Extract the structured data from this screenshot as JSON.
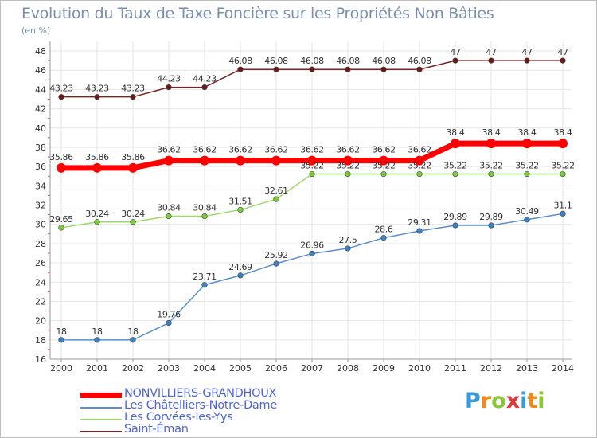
{
  "title": "Evolution du Taux de Taxe Foncière sur les Propriétés Non Bâties",
  "unit_label": "(en %)",
  "brand": {
    "text": "Proxiti",
    "letters": [
      {
        "ch": "P",
        "color": "#3a9ad9"
      },
      {
        "ch": "r",
        "color": "#f08a1c"
      },
      {
        "ch": "o",
        "color": "#8cc63f"
      },
      {
        "ch": "x",
        "color": "#e23a3a"
      },
      {
        "ch": "i",
        "color": "#3a9ad9"
      },
      {
        "ch": "t",
        "color": "#f08a1c"
      },
      {
        "ch": "i",
        "color": "#8cc63f"
      }
    ]
  },
  "chart_data": {
    "type": "line",
    "title": "Evolution du Taux de Taxe Foncière sur les Propriétés Non Bâties",
    "ylabel": "(en %)",
    "xlabel": "",
    "ylim": [
      16,
      48
    ],
    "yticks": [
      16,
      18,
      20,
      22,
      24,
      26,
      28,
      30,
      32,
      34,
      36,
      38,
      40,
      42,
      44,
      46,
      48
    ],
    "x": [
      "2000",
      "2001",
      "2002",
      "2003",
      "2004",
      "2005",
      "2006",
      "2007",
      "2008",
      "2009",
      "2010",
      "2011",
      "2012",
      "2013",
      "2014"
    ],
    "grid": true,
    "legend_position": "bottom-left",
    "series": [
      {
        "name": "NONVILLIERS-GRANDHOUX",
        "color": "#ff0000",
        "marker": "#ff0000",
        "width": 7,
        "labels": [
          "35.86",
          "35.86",
          "35.86",
          "36.62",
          "36.62",
          "36.62",
          "36.62",
          "36.62",
          "36.62",
          "36.62",
          "36.62",
          "38.4",
          "38.4",
          "38.4",
          "38.4"
        ],
        "values": [
          35.86,
          35.86,
          35.86,
          36.62,
          36.62,
          36.62,
          36.62,
          36.62,
          36.62,
          36.62,
          36.62,
          38.4,
          38.4,
          38.4,
          38.4
        ]
      },
      {
        "name": "Les Châtelliers-Notre-Dame",
        "color": "#5a8fcf",
        "marker": "#3b82c4",
        "width": 1.5,
        "labels": [
          "18",
          "18",
          "18",
          "19.76",
          "23.71",
          "24.69",
          "25.92",
          "26.96",
          "27.5",
          "28.6",
          "29.31",
          "29.89",
          "29.89",
          "30.49",
          "31.1"
        ],
        "values": [
          18,
          18,
          18,
          19.76,
          23.71,
          24.69,
          25.92,
          26.96,
          27.5,
          28.6,
          29.31,
          29.89,
          29.89,
          30.49,
          31.1
        ]
      },
      {
        "name": "Les Corvées-les-Yys",
        "color": "#99dd66",
        "marker": "#7ccd3a",
        "width": 1.5,
        "labels": [
          "29.65",
          "30.24",
          "30.24",
          "30.84",
          "30.84",
          "31.51",
          "32.61",
          "35.22",
          "35.22",
          "35.22",
          "35.22",
          "35.22",
          "35.22",
          "35.22",
          "35.22"
        ],
        "values": [
          29.65,
          30.24,
          30.24,
          30.84,
          30.84,
          31.51,
          32.61,
          35.22,
          35.22,
          35.22,
          35.22,
          35.22,
          35.22,
          35.22,
          35.22
        ]
      },
      {
        "name": "Saint-Éman",
        "color": "#7b2424",
        "marker": "#6b1a1a",
        "width": 1.5,
        "labels": [
          "43.23",
          "43.23",
          "43.23",
          "44.23",
          "44.23",
          "46.08",
          "46.08",
          "46.08",
          "46.08",
          "46.08",
          "46.08",
          "47",
          "47",
          "47",
          "47"
        ],
        "values": [
          43.23,
          43.23,
          43.23,
          44.23,
          44.23,
          46.08,
          46.08,
          46.08,
          46.08,
          46.08,
          46.08,
          47,
          47,
          47,
          47
        ]
      }
    ]
  }
}
